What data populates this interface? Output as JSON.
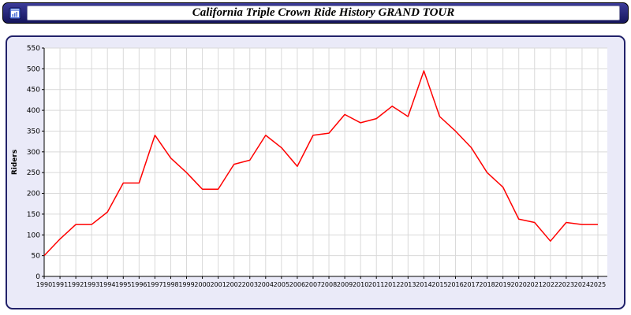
{
  "title_bar": {
    "title": "California Triple Crown Ride History GRAND TOUR"
  },
  "colors": {
    "title_bar_bg": "#2a2a80",
    "panel_bg": "#eaeaf8",
    "panel_border": "#22226a",
    "plot_bg": "#ffffff",
    "grid": "#d9d9d9",
    "axis": "#000000",
    "line": "#ff0000"
  },
  "chart_data": {
    "type": "line",
    "title": "California Triple Crown Ride History GRAND TOUR",
    "xlabel": "",
    "ylabel": "Riders",
    "ylim": [
      0,
      550
    ],
    "ytick_step": 50,
    "grid": true,
    "legend_position": "none",
    "x": [
      1990,
      1991,
      1992,
      1993,
      1994,
      1995,
      1996,
      1997,
      1998,
      1999,
      2000,
      2001,
      2002,
      2003,
      2004,
      2005,
      2006,
      2007,
      2008,
      2009,
      2010,
      2011,
      2012,
      2013,
      2014,
      2015,
      2016,
      2017,
      2018,
      2019,
      2020,
      2021,
      2022,
      2023,
      2024,
      2025
    ],
    "series": [
      {
        "name": "Riders",
        "color": "#ff0000",
        "values": [
          50,
          90,
          125,
          125,
          155,
          225,
          225,
          340,
          285,
          250,
          210,
          210,
          270,
          280,
          340,
          310,
          265,
          340,
          345,
          390,
          370,
          380,
          410,
          385,
          495,
          385,
          350,
          310,
          250,
          215,
          138,
          130,
          85,
          130,
          125,
          125
        ]
      }
    ]
  }
}
